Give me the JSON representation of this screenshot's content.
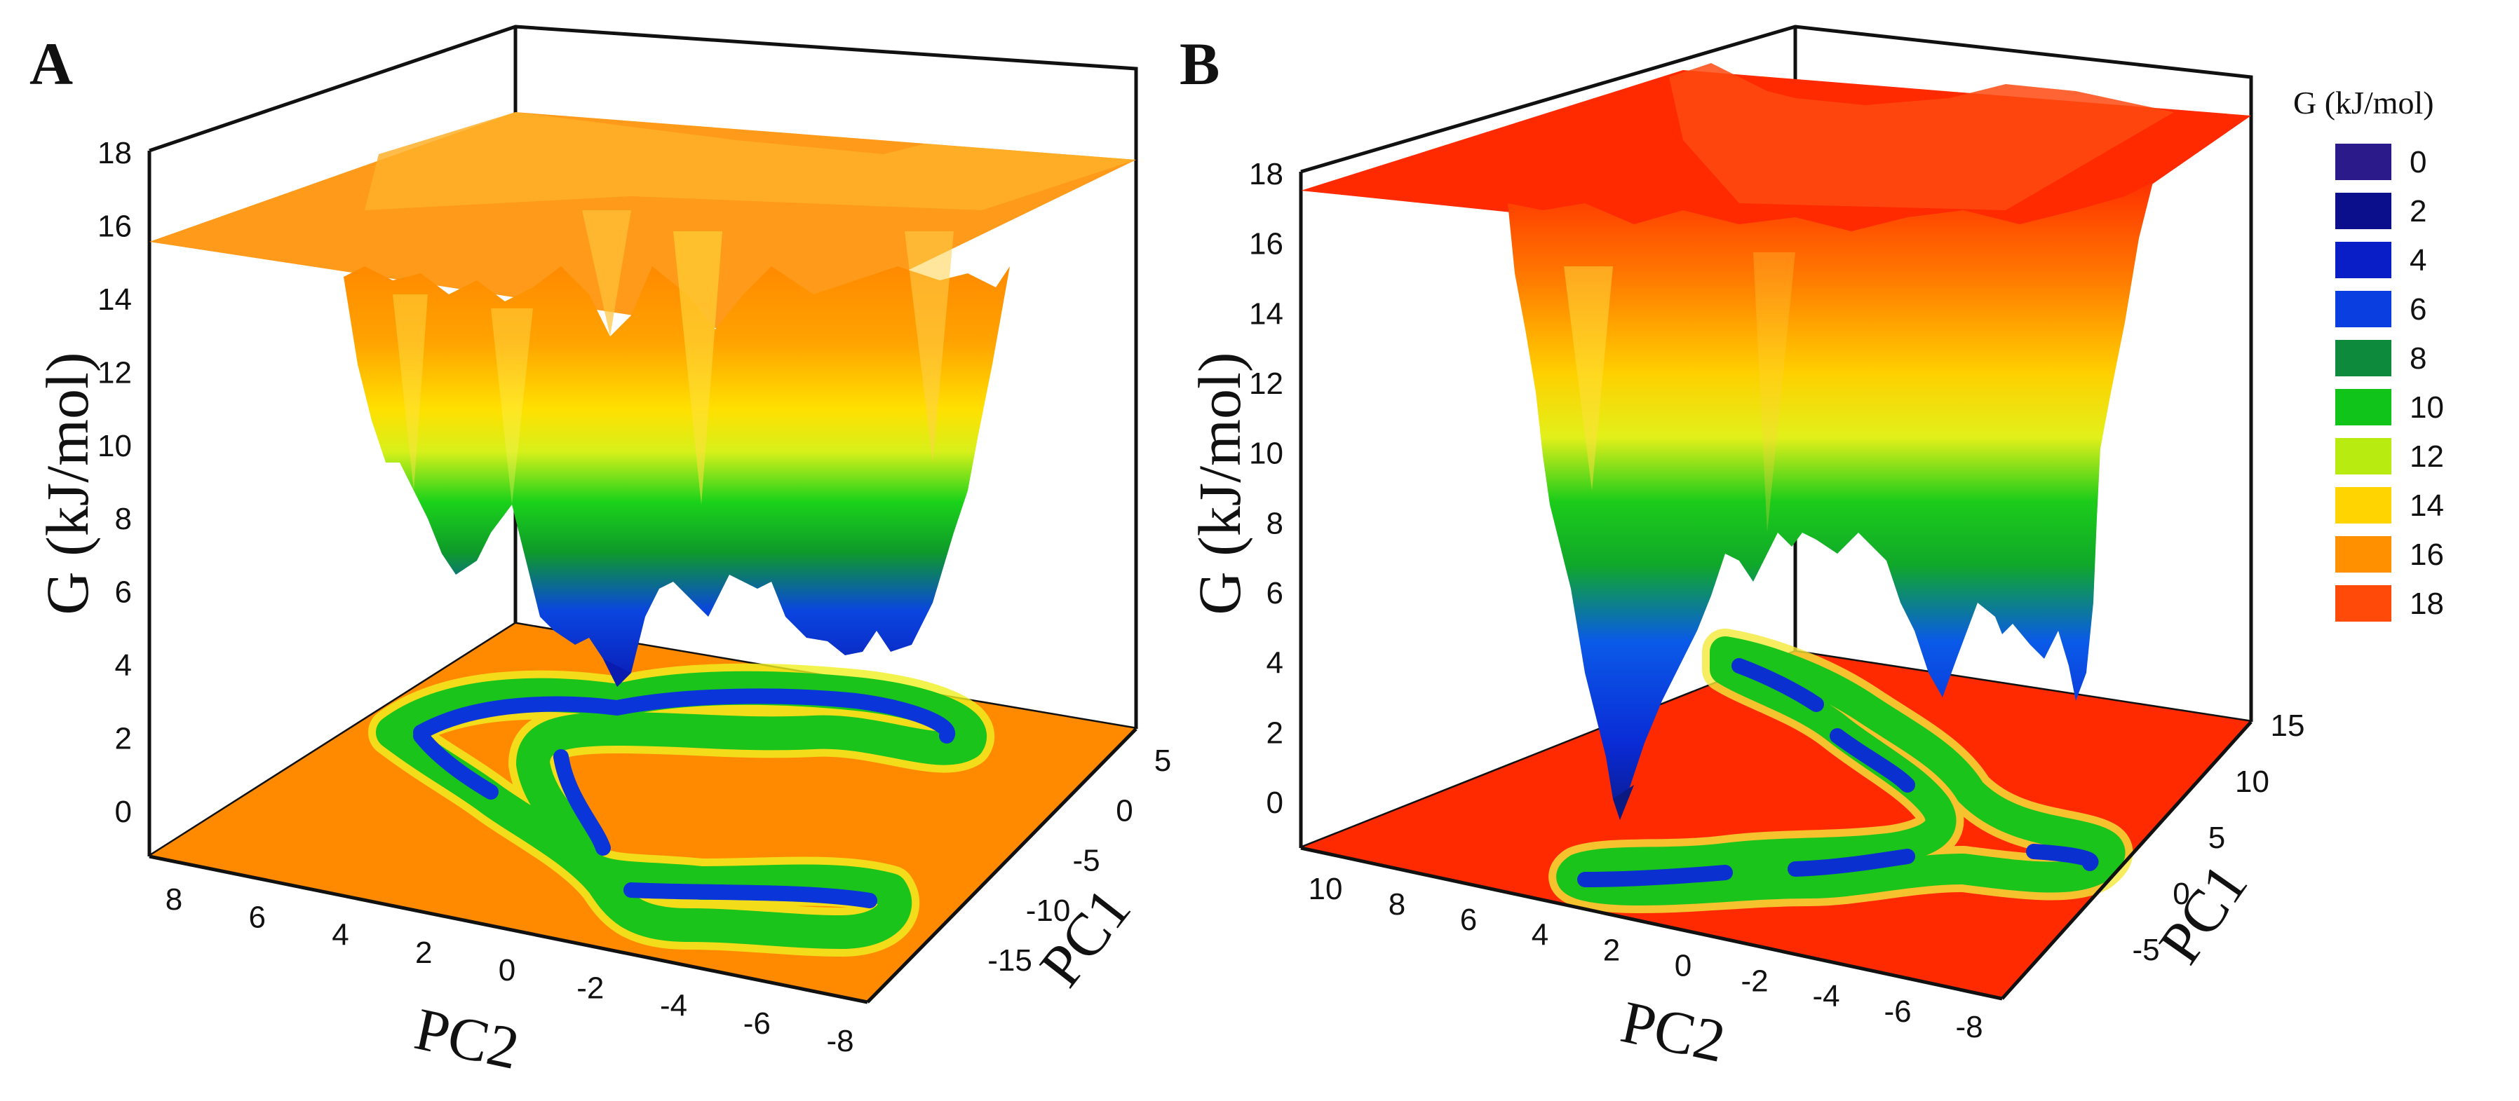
{
  "chart_data": [
    {
      "panel": "A",
      "type": "surface3d",
      "zlabel": "G (kJ/mol)",
      "xlabel": "PC2",
      "ylabel": "PC1",
      "z_ticks": [
        "18",
        "16",
        "14",
        "12",
        "10",
        "8",
        "6",
        "4",
        "2",
        "0"
      ],
      "x_ticks": [
        "8",
        "6",
        "4",
        "2",
        "0",
        "-2",
        "-4",
        "-6",
        "-8"
      ],
      "y_ticks": [
        "5",
        "0",
        "-5",
        "-10",
        "-15"
      ],
      "zlim": [
        -1,
        18
      ],
      "plateau_value": 16,
      "minima": [
        3,
        4,
        5,
        7,
        8,
        10
      ]
    },
    {
      "panel": "B",
      "type": "surface3d",
      "zlabel": "G (kJ/mol)",
      "xlabel": "PC2",
      "ylabel": "PC1",
      "z_ticks": [
        "18",
        "16",
        "14",
        "12",
        "10",
        "8",
        "6",
        "4",
        "2",
        "0"
      ],
      "x_ticks": [
        "10",
        "8",
        "6",
        "4",
        "2",
        "0",
        "-2",
        "-4",
        "-6",
        "-8"
      ],
      "y_ticks": [
        "15",
        "10",
        "5",
        "0",
        "-5"
      ],
      "zlim": [
        -1,
        18
      ],
      "plateau_value": 18,
      "minima": [
        0,
        3,
        4,
        4,
        9
      ]
    }
  ],
  "legend": {
    "title": "G (kJ/mol)",
    "items": [
      {
        "label": "0",
        "color": "#2b1a8a"
      },
      {
        "label": "2",
        "color": "#0b0f8c"
      },
      {
        "label": "4",
        "color": "#0a1ec8"
      },
      {
        "label": "6",
        "color": "#0a3ee0"
      },
      {
        "label": "8",
        "color": "#0d8a3c"
      },
      {
        "label": "10",
        "color": "#11c41a"
      },
      {
        "label": "12",
        "color": "#b8ec10"
      },
      {
        "label": "14",
        "color": "#ffd400"
      },
      {
        "label": "16",
        "color": "#ff9000"
      },
      {
        "label": "18",
        "color": "#ff4a0a"
      }
    ]
  }
}
